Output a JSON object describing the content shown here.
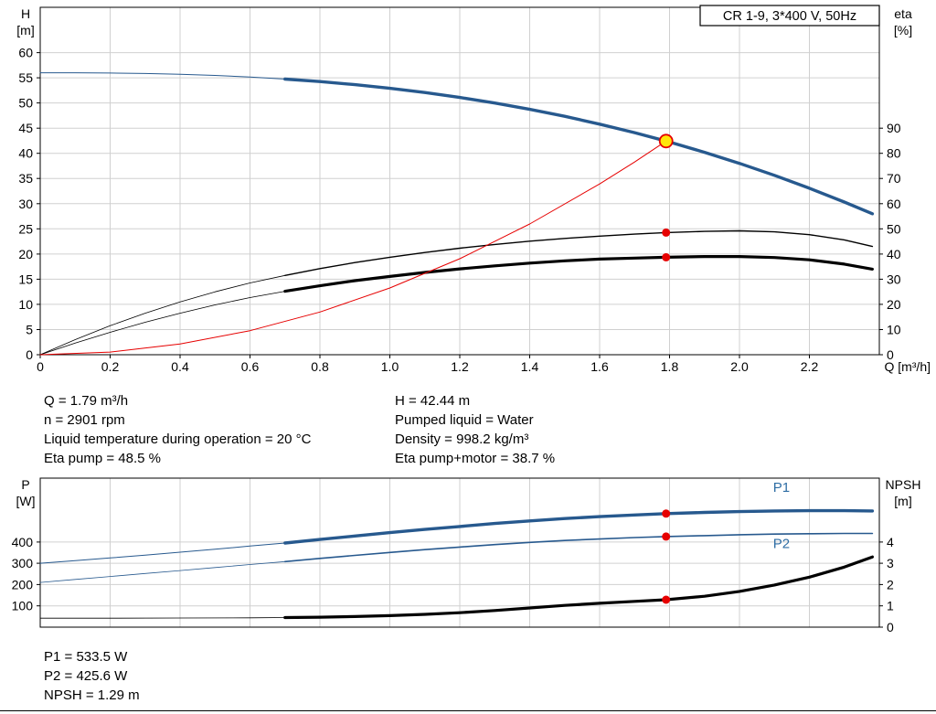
{
  "colors": {
    "curve_blue": "#27598e",
    "label_blue": "#2e6da4",
    "red": "#e60000",
    "duty_fill": "#ffe60a",
    "black": "#000000",
    "grid": "#d0d0d0",
    "frame": "#000000"
  },
  "mid_text": {
    "left": [
      "Q = 1.79 m³/h",
      "n = 2901 rpm",
      "Liquid temperature during operation = 20 °C",
      "Eta pump = 48.5 %"
    ],
    "right": [
      "H = 42.44 m",
      "Pumped liquid = Water",
      "Density = 998.2 kg/m³",
      "Eta pump+motor = 38.7 %"
    ]
  },
  "bottom_text": [
    "P1 = 533.5 W",
    "P2 = 425.6 W",
    "NPSH = 1.29 m"
  ],
  "chart_data": [
    {
      "type": "line",
      "name": "qh-eta-chart",
      "title": "CR 1-9, 3*400 V, 50Hz",
      "x_axis": {
        "label": "Q [m³/h]",
        "min": 0,
        "max": 2.4,
        "show_labels": true,
        "tick_values": [
          0,
          0.2,
          0.4,
          0.6,
          0.8,
          1.0,
          1.2,
          1.4,
          1.6,
          1.8,
          2.0,
          2.2
        ],
        "tick_labels": [
          "0",
          "0.2",
          "0.4",
          "0.6",
          "0.8",
          "1.0",
          "1.2",
          "1.4",
          "1.6",
          "1.8",
          "2.0",
          "2.2"
        ]
      },
      "left_axis": {
        "title_line1": "H",
        "title_line2": "[m]",
        "min": 0,
        "max": 69,
        "tick_values": [
          0,
          5,
          10,
          15,
          20,
          25,
          30,
          35,
          40,
          45,
          50,
          55,
          60
        ],
        "tick_labels": [
          "0",
          "5",
          "10",
          "15",
          "20",
          "25",
          "30",
          "35",
          "40",
          "45",
          "50",
          "55",
          "60"
        ]
      },
      "right_axis": {
        "title_line1": "eta",
        "title_line2": "[%]",
        "left_units_per_right_unit": 0.5,
        "tick_values": [
          0,
          10,
          20,
          30,
          40,
          50,
          60,
          70,
          80,
          90
        ],
        "tick_labels": [
          "0",
          "10",
          "20",
          "30",
          "40",
          "50",
          "60",
          "70",
          "80",
          "90"
        ]
      },
      "series": [
        {
          "name": "eta-pump-curve",
          "axis": "right",
          "color": "black",
          "width_thin": 0.8,
          "width_thick": 1.4,
          "split_at": 0.7,
          "points": [
            [
              0,
              0
            ],
            [
              0.1,
              6
            ],
            [
              0.2,
              11.5
            ],
            [
              0.3,
              16.5
            ],
            [
              0.4,
              21
            ],
            [
              0.5,
              25
            ],
            [
              0.6,
              28.5
            ],
            [
              0.7,
              31.5
            ],
            [
              0.8,
              34.2
            ],
            [
              0.9,
              36.6
            ],
            [
              1.0,
              38.7
            ],
            [
              1.1,
              40.6
            ],
            [
              1.2,
              42.3
            ],
            [
              1.3,
              43.8
            ],
            [
              1.4,
              45.1
            ],
            [
              1.5,
              46.2
            ],
            [
              1.6,
              47.1
            ],
            [
              1.7,
              47.9
            ],
            [
              1.79,
              48.5
            ],
            [
              1.9,
              49.0
            ],
            [
              2.0,
              49.2
            ],
            [
              2.1,
              48.8
            ],
            [
              2.2,
              47.7
            ],
            [
              2.3,
              45.6
            ],
            [
              2.38,
              43.0
            ]
          ]
        },
        {
          "name": "eta-pump-motor-curve",
          "axis": "right",
          "color": "black",
          "width_thin": 0.8,
          "width_thick": 3.2,
          "split_at": 0.7,
          "points": [
            [
              0,
              0
            ],
            [
              0.1,
              4.6
            ],
            [
              0.2,
              8.9
            ],
            [
              0.3,
              12.9
            ],
            [
              0.4,
              16.5
            ],
            [
              0.5,
              19.8
            ],
            [
              0.6,
              22.7
            ],
            [
              0.7,
              25.2
            ],
            [
              0.8,
              27.4
            ],
            [
              0.9,
              29.4
            ],
            [
              1.0,
              31.1
            ],
            [
              1.1,
              32.7
            ],
            [
              1.2,
              34.1
            ],
            [
              1.3,
              35.3
            ],
            [
              1.4,
              36.4
            ],
            [
              1.5,
              37.3
            ],
            [
              1.6,
              38.0
            ],
            [
              1.7,
              38.4
            ],
            [
              1.79,
              38.7
            ],
            [
              1.9,
              39.0
            ],
            [
              2.0,
              39.0
            ],
            [
              2.1,
              38.6
            ],
            [
              2.2,
              37.7
            ],
            [
              2.3,
              36.0
            ],
            [
              2.38,
              34.0
            ]
          ]
        },
        {
          "name": "system-curve",
          "axis": "left",
          "color": "red",
          "width_thin": 1,
          "width_thick": 1,
          "split_at": null,
          "points": [
            [
              0,
              0
            ],
            [
              0.2,
              0.53
            ],
            [
              0.4,
              2.12
            ],
            [
              0.6,
              4.77
            ],
            [
              0.8,
              8.48
            ],
            [
              1.0,
              13.25
            ],
            [
              1.2,
              19.07
            ],
            [
              1.4,
              25.96
            ],
            [
              1.6,
              33.91
            ],
            [
              1.7,
              38.28
            ],
            [
              1.79,
              42.44
            ]
          ]
        },
        {
          "name": "head-curve",
          "axis": "left",
          "color": "curve_blue",
          "width_thin": 1,
          "width_thick": 3.4,
          "split_at": 0.7,
          "points": [
            [
              0,
              56
            ],
            [
              0.1,
              55.99
            ],
            [
              0.2,
              55.95
            ],
            [
              0.3,
              55.86
            ],
            [
              0.4,
              55.7
            ],
            [
              0.5,
              55.47
            ],
            [
              0.6,
              55.16
            ],
            [
              0.7,
              54.75
            ],
            [
              0.8,
              54.25
            ],
            [
              0.9,
              53.64
            ],
            [
              1.0,
              52.92
            ],
            [
              1.1,
              52.07
            ],
            [
              1.2,
              51.1
            ],
            [
              1.3,
              49.99
            ],
            [
              1.4,
              48.74
            ],
            [
              1.5,
              47.35
            ],
            [
              1.6,
              45.8
            ],
            [
              1.7,
              44.1
            ],
            [
              1.79,
              42.44
            ],
            [
              1.9,
              40.21
            ],
            [
              2.0,
              38.01
            ],
            [
              2.1,
              35.63
            ],
            [
              2.2,
              33.07
            ],
            [
              2.3,
              30.32
            ],
            [
              2.38,
              28.0
            ]
          ]
        }
      ],
      "markers": [
        {
          "name": "eta-pump-marker",
          "type": "dot",
          "q": 1.79,
          "value": 48.5,
          "axis": "right"
        },
        {
          "name": "eta-pump-motor-marker",
          "type": "dot",
          "q": 1.79,
          "value": 38.7,
          "axis": "right"
        },
        {
          "name": "duty-point",
          "type": "duty",
          "q": 1.79,
          "value": 42.44,
          "axis": "left"
        }
      ],
      "curve_labels": []
    },
    {
      "type": "line",
      "name": "power-npsh-chart",
      "title": "",
      "x_axis": {
        "label": "",
        "min": 0,
        "max": 2.4,
        "show_labels": false,
        "tick_values": [
          0,
          0.2,
          0.4,
          0.6,
          0.8,
          1.0,
          1.2,
          1.4,
          1.6,
          1.8,
          2.0,
          2.2
        ],
        "tick_labels": []
      },
      "left_axis": {
        "title_line1": "P",
        "title_line2": "[W]",
        "min": 0,
        "max": 700,
        "tick_values": [
          100,
          200,
          300,
          400
        ],
        "tick_labels": [
          "100",
          "200",
          "300",
          "400"
        ]
      },
      "right_axis": {
        "title_line1": "NPSH",
        "title_line2": "[m]",
        "left_units_per_right_unit": 100,
        "tick_values": [
          0,
          1,
          2,
          3,
          4
        ],
        "tick_labels": [
          "0",
          "1",
          "2",
          "3",
          "4"
        ]
      },
      "series": [
        {
          "name": "npsh-curve",
          "axis": "right",
          "color": "black",
          "width_thin": 0.8,
          "width_thick": 3.2,
          "split_at": 0.7,
          "points": [
            [
              0,
              0.42
            ],
            [
              0.2,
              0.42
            ],
            [
              0.4,
              0.43
            ],
            [
              0.6,
              0.44
            ],
            [
              0.7,
              0.45
            ],
            [
              0.8,
              0.47
            ],
            [
              0.9,
              0.5
            ],
            [
              1.0,
              0.54
            ],
            [
              1.1,
              0.6
            ],
            [
              1.2,
              0.68
            ],
            [
              1.3,
              0.78
            ],
            [
              1.4,
              0.9
            ],
            [
              1.5,
              1.02
            ],
            [
              1.6,
              1.12
            ],
            [
              1.7,
              1.21
            ],
            [
              1.79,
              1.29
            ],
            [
              1.9,
              1.45
            ],
            [
              2.0,
              1.68
            ],
            [
              2.1,
              1.98
            ],
            [
              2.2,
              2.35
            ],
            [
              2.3,
              2.82
            ],
            [
              2.38,
              3.3
            ]
          ]
        },
        {
          "name": "p2-curve",
          "axis": "left",
          "color": "curve_blue",
          "width_thin": 0.8,
          "width_thick": 1.6,
          "split_at": 0.7,
          "points": [
            [
              0,
              210
            ],
            [
              0.1,
              224
            ],
            [
              0.2,
              238
            ],
            [
              0.3,
              252
            ],
            [
              0.4,
              266
            ],
            [
              0.5,
              280
            ],
            [
              0.6,
              294
            ],
            [
              0.7,
              308
            ],
            [
              0.8,
              323
            ],
            [
              0.9,
              337
            ],
            [
              1.0,
              351
            ],
            [
              1.1,
              364
            ],
            [
              1.2,
              376
            ],
            [
              1.3,
              388
            ],
            [
              1.4,
              398
            ],
            [
              1.5,
              407
            ],
            [
              1.6,
              414
            ],
            [
              1.7,
              421
            ],
            [
              1.79,
              425.6
            ],
            [
              1.9,
              430
            ],
            [
              2.0,
              434
            ],
            [
              2.1,
              437
            ],
            [
              2.2,
              439
            ],
            [
              2.3,
              440
            ],
            [
              2.38,
              440
            ]
          ]
        },
        {
          "name": "p1-curve",
          "axis": "left",
          "color": "curve_blue",
          "width_thin": 1,
          "width_thick": 3.4,
          "split_at": 0.7,
          "points": [
            [
              0,
              300
            ],
            [
              0.1,
              312
            ],
            [
              0.2,
              325
            ],
            [
              0.3,
              338
            ],
            [
              0.4,
              352
            ],
            [
              0.5,
              366
            ],
            [
              0.6,
              381
            ],
            [
              0.7,
              395
            ],
            [
              0.8,
              412
            ],
            [
              0.9,
              428
            ],
            [
              1.0,
              444
            ],
            [
              1.1,
              459
            ],
            [
              1.2,
              473
            ],
            [
              1.3,
              487
            ],
            [
              1.4,
              499
            ],
            [
              1.5,
              510
            ],
            [
              1.6,
              519
            ],
            [
              1.7,
              527
            ],
            [
              1.79,
              533.5
            ],
            [
              1.9,
              539
            ],
            [
              2.0,
              543
            ],
            [
              2.1,
              546
            ],
            [
              2.2,
              547
            ],
            [
              2.3,
              547
            ],
            [
              2.38,
              546
            ]
          ]
        }
      ],
      "markers": [
        {
          "name": "p1-marker",
          "type": "dot",
          "q": 1.79,
          "value": 533.5,
          "axis": "left"
        },
        {
          "name": "p2-marker",
          "type": "dot",
          "q": 1.79,
          "value": 425.6,
          "axis": "left"
        },
        {
          "name": "npsh-marker",
          "type": "dot",
          "q": 1.79,
          "value": 1.29,
          "axis": "right"
        }
      ],
      "curve_labels": [
        {
          "name": "p1-label",
          "text": "P1",
          "q": 2.12,
          "value": 635,
          "axis": "left"
        },
        {
          "name": "p2-label",
          "text": "P2",
          "q": 2.12,
          "value": 372,
          "axis": "left"
        }
      ]
    }
  ]
}
